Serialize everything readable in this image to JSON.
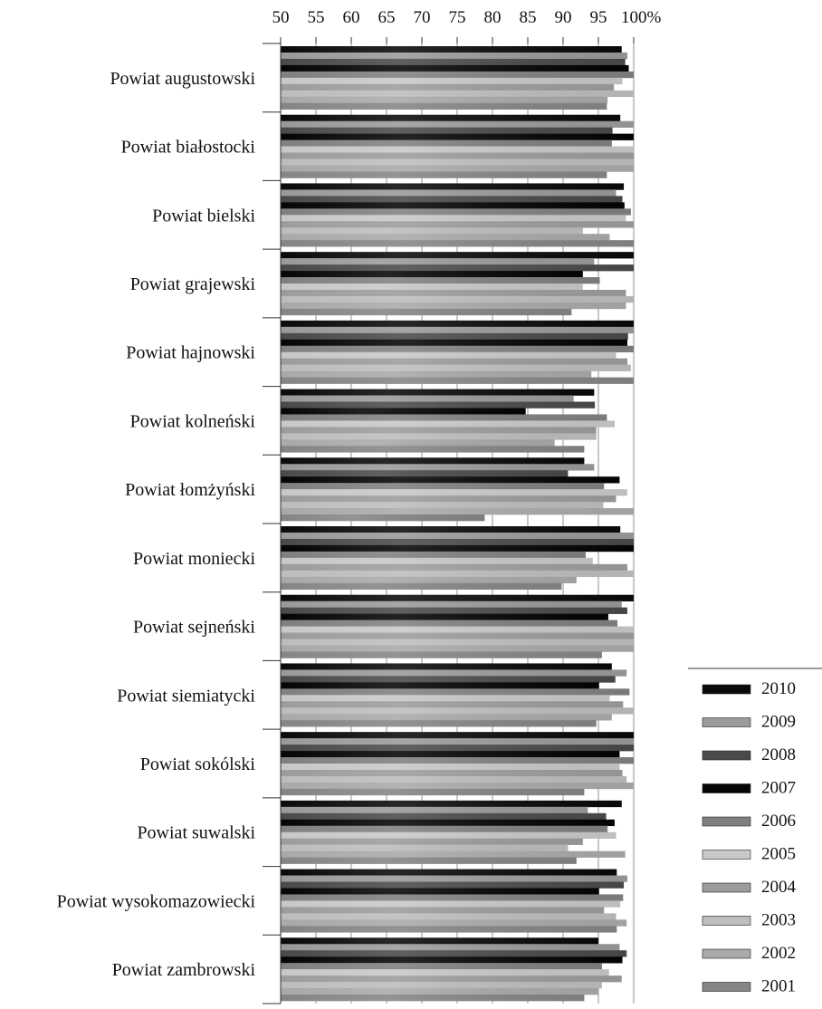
{
  "chart_data": {
    "type": "bar",
    "orientation": "horizontal",
    "xlim": [
      50,
      100
    ],
    "x_ticks": [
      "50",
      "55",
      "60",
      "65",
      "70",
      "75",
      "80",
      "85",
      "90",
      "95",
      "100%"
    ],
    "legend_title": "",
    "legend_position": "right-bottom",
    "categories": [
      "Powiat augustowski",
      "Powiat białostocki",
      "Powiat bielski",
      "Powiat grajewski",
      "Powiat hajnowski",
      "Powiat kolneński",
      "Powiat łomżyński",
      "Powiat moniecki",
      "Powiat sejneński",
      "Powiat siemiatycki",
      "Powiat sokólski",
      "Powiat suwalski",
      "Powiat wysokomazowiecki",
      "Powiat zambrowski"
    ],
    "series": [
      {
        "name": "2010",
        "color": "#0a0a0a",
        "values": [
          98.3,
          98.1,
          98.6,
          100,
          100,
          94.4,
          93.0,
          98.1,
          100,
          96.9,
          100,
          98.3,
          97.6,
          95.0
        ]
      },
      {
        "name": "2009",
        "color": "#9a9a9a",
        "values": [
          99.1,
          100,
          97.5,
          94.4,
          100,
          91.5,
          94.4,
          100,
          98.3,
          99.0,
          100,
          93.5,
          99.1,
          98.0
        ]
      },
      {
        "name": "2008",
        "color": "#4a4a4a",
        "values": [
          98.8,
          97.0,
          98.4,
          100,
          99.2,
          94.5,
          90.7,
          100,
          99.1,
          97.4,
          100,
          96.1,
          98.6,
          99.0
        ]
      },
      {
        "name": "2007",
        "color": "#050505",
        "values": [
          99.3,
          100,
          98.7,
          92.8,
          99.1,
          84.7,
          98.0,
          100,
          96.4,
          95.1,
          98.0,
          97.3,
          95.1,
          98.4
        ]
      },
      {
        "name": "2006",
        "color": "#808080",
        "values": [
          100,
          96.9,
          99.6,
          95.2,
          100,
          96.2,
          95.8,
          93.2,
          97.7,
          99.4,
          100,
          96.3,
          98.5,
          95.5
        ]
      },
      {
        "name": "2005",
        "color": "#c8c8c8",
        "values": [
          98.4,
          100,
          98.9,
          92.8,
          97.5,
          97.3,
          99.1,
          94.2,
          100,
          96.6,
          98.0,
          97.5,
          98.1,
          96.5
        ]
      },
      {
        "name": "2004",
        "color": "#9c9c9c",
        "values": [
          97.2,
          100,
          100,
          98.9,
          99.1,
          94.7,
          97.5,
          99.1,
          100,
          98.5,
          98.4,
          92.8,
          95.8,
          98.3
        ]
      },
      {
        "name": "2003",
        "color": "#bdbdbd",
        "values": [
          100,
          100,
          92.8,
          100,
          99.6,
          94.7,
          95.7,
          100,
          100,
          100,
          99.0,
          90.7,
          97.5,
          95.5
        ]
      },
      {
        "name": "2002",
        "color": "#a9a9a9",
        "values": [
          96.3,
          100,
          96.6,
          98.9,
          94.0,
          88.8,
          100,
          91.9,
          100,
          96.9,
          100,
          98.8,
          99.0,
          95.0
        ]
      },
      {
        "name": "2001",
        "color": "#858585",
        "values": [
          96.2,
          96.2,
          100,
          91.2,
          100,
          93.0,
          78.9,
          89.8,
          95.5,
          94.7,
          93.0,
          91.9,
          97.6,
          93.0
        ]
      }
    ]
  }
}
